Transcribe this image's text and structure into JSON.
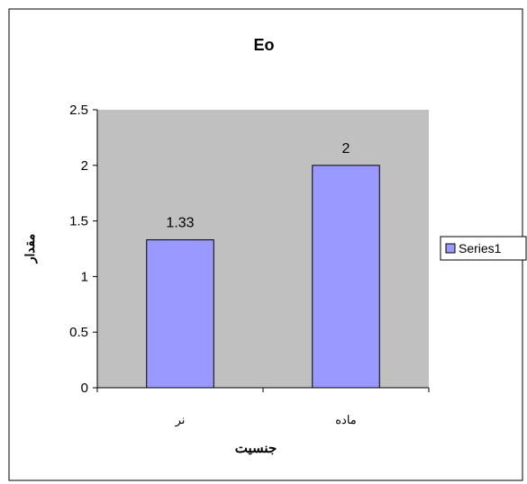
{
  "chart_data": {
    "type": "bar",
    "title": "Eo",
    "xlabel": "جنسیت",
    "ylabel": "مقدار",
    "categories": [
      "نر",
      "ماده"
    ],
    "series": [
      {
        "name": "Series1",
        "values": [
          1.33,
          2
        ]
      }
    ],
    "data_labels": [
      "1.33",
      "2"
    ],
    "ylim": [
      0,
      2.5
    ],
    "yticks": [
      "0",
      "0.5",
      "1",
      "1.5",
      "2",
      "2.5"
    ],
    "grid": false,
    "legend": "right",
    "colors": {
      "plot_area": "#c0c0c0",
      "bar_fill": "#9999ff",
      "bar_stroke": "#000000",
      "frame": "#000000",
      "background": "#ffffff"
    }
  }
}
